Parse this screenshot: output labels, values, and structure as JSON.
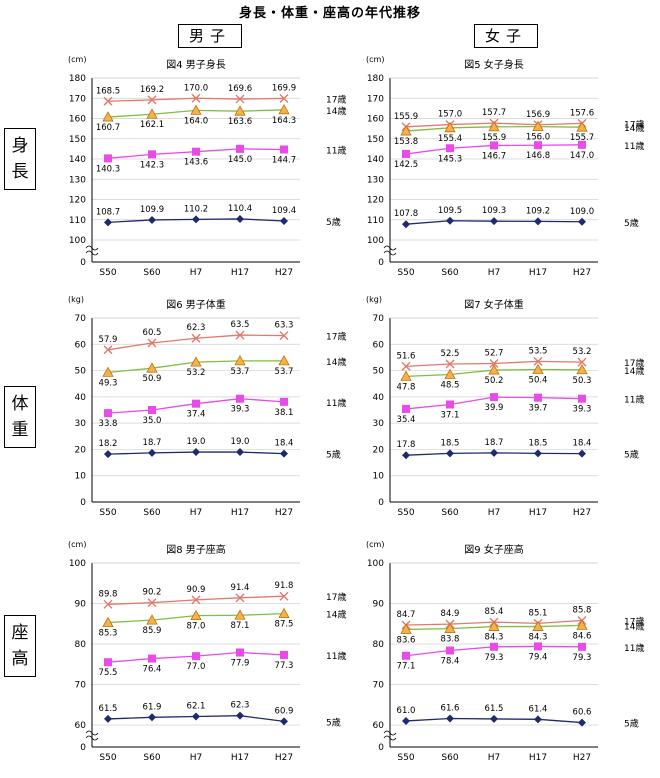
{
  "title": "身長・体重・座高の年代推移",
  "gender": {
    "male": "男子",
    "female": "女子"
  },
  "rows": [
    {
      "label": "身長"
    },
    {
      "label": "体重"
    },
    {
      "label": "座高"
    }
  ],
  "colors": {
    "age17": "#E2796C",
    "age14": "#7FBF3F",
    "age11": "#E94BE9",
    "age5": "#1F2A6E",
    "triangle_fill": "#F6B24A"
  },
  "chart_data": [
    {
      "type": "line",
      "title": "図4 男子身長",
      "unit_label": "(cm)",
      "categories": [
        "S50",
        "S60",
        "H7",
        "H17",
        "H27"
      ],
      "ylim": [
        0,
        180
      ],
      "yticks": [
        0,
        100,
        110,
        120,
        130,
        140,
        150,
        160,
        170,
        180
      ],
      "axis_break": true,
      "grid": true,
      "series": [
        {
          "name": "17歳",
          "values": [
            168.5,
            169.2,
            170.0,
            169.6,
            169.9
          ],
          "labels": [
            "168.5",
            "169.2",
            "170.0",
            "169.6",
            "169.9"
          ]
        },
        {
          "name": "14歳",
          "values": [
            160.7,
            162.1,
            164.0,
            163.6,
            164.3
          ],
          "labels": [
            "160.7",
            "162.1",
            "164.0",
            "163.6",
            "164.3"
          ]
        },
        {
          "name": "11歳",
          "values": [
            140.3,
            142.3,
            143.6,
            145.0,
            144.7
          ],
          "labels": [
            "140.3",
            "142.3",
            "143.6",
            "145.0",
            "144.7"
          ]
        },
        {
          "name": "5歳",
          "values": [
            108.7,
            109.9,
            110.2,
            110.4,
            109.4
          ],
          "labels": [
            "108.7",
            "109.9",
            "110.2",
            "110.4",
            "109.4"
          ]
        }
      ]
    },
    {
      "type": "line",
      "title": "図5 女子身長",
      "unit_label": "(cm)",
      "categories": [
        "S50",
        "S60",
        "H7",
        "H17",
        "H27"
      ],
      "ylim": [
        0,
        180
      ],
      "yticks": [
        0,
        100,
        110,
        120,
        130,
        140,
        150,
        160,
        170,
        180
      ],
      "axis_break": true,
      "grid": true,
      "series": [
        {
          "name": "17歳",
          "values": [
            155.9,
            157.0,
            157.7,
            156.9,
            157.6
          ],
          "labels": [
            "155.9",
            "157.0",
            "157.7",
            "156.9",
            "157.6"
          ]
        },
        {
          "name": "14歳",
          "values": [
            153.8,
            155.4,
            155.9,
            156.0,
            155.7
          ],
          "labels": [
            "153.8",
            "155.4",
            "155.9",
            "156.0",
            "155.7"
          ]
        },
        {
          "name": "11歳",
          "values": [
            142.5,
            145.3,
            146.7,
            146.8,
            147.0
          ],
          "labels": [
            "142.5",
            "145.3",
            "146.7",
            "146.8",
            "147.0"
          ]
        },
        {
          "name": "5歳",
          "values": [
            107.8,
            109.5,
            109.3,
            109.2,
            109.0
          ],
          "labels": [
            "107.8",
            "109.5",
            "109.3",
            "109.2",
            "109.0"
          ]
        }
      ]
    },
    {
      "type": "line",
      "title": "図6 男子体重",
      "unit_label": "(kg)",
      "categories": [
        "S50",
        "S60",
        "H7",
        "H17",
        "H27"
      ],
      "ylim": [
        0,
        70
      ],
      "yticks": [
        0,
        10,
        20,
        30,
        40,
        50,
        60,
        70
      ],
      "axis_break": false,
      "grid": true,
      "series": [
        {
          "name": "17歳",
          "values": [
            57.9,
            60.5,
            62.3,
            63.5,
            63.3
          ],
          "labels": [
            "57.9",
            "60.5",
            "62.3",
            "63.5",
            "63.3"
          ]
        },
        {
          "name": "14歳",
          "values": [
            49.3,
            50.9,
            53.2,
            53.7,
            53.7
          ],
          "labels": [
            "49.3",
            "50.9",
            "53.2",
            "53.7",
            "53.7"
          ]
        },
        {
          "name": "11歳",
          "values": [
            33.8,
            35.0,
            37.4,
            39.3,
            38.1
          ],
          "labels": [
            "33.8",
            "35.0",
            "37.4",
            "39.3",
            "38.1"
          ]
        },
        {
          "name": "5歳",
          "values": [
            18.2,
            18.7,
            19.0,
            19.0,
            18.4
          ],
          "labels": [
            "18.2",
            "18.7",
            "19.0",
            "19.0",
            "18.4"
          ]
        }
      ]
    },
    {
      "type": "line",
      "title": "図7 女子体重",
      "unit_label": "(kg)",
      "categories": [
        "S50",
        "S60",
        "H7",
        "H17",
        "H27"
      ],
      "ylim": [
        0,
        70
      ],
      "yticks": [
        0,
        10,
        20,
        30,
        40,
        50,
        60,
        70
      ],
      "axis_break": false,
      "grid": true,
      "series": [
        {
          "name": "17歳",
          "values": [
            51.6,
            52.5,
            52.7,
            53.5,
            53.2
          ],
          "labels": [
            "51.6",
            "52.5",
            "52.7",
            "53.5",
            "53.2"
          ]
        },
        {
          "name": "14歳",
          "values": [
            47.8,
            48.5,
            50.2,
            50.4,
            50.3
          ],
          "labels": [
            "47.8",
            "48.5",
            "50.2",
            "50.4",
            "50.3"
          ]
        },
        {
          "name": "11歳",
          "values": [
            35.4,
            37.1,
            39.9,
            39.7,
            39.3
          ],
          "labels": [
            "35.4",
            "37.1",
            "39.9",
            "39.7",
            "39.3"
          ]
        },
        {
          "name": "5歳",
          "values": [
            17.8,
            18.5,
            18.7,
            18.5,
            18.4
          ],
          "labels": [
            "17.8",
            "18.5",
            "18.7",
            "18.5",
            "18.4"
          ]
        }
      ]
    },
    {
      "type": "line",
      "title": "図8 男子座高",
      "unit_label": "(cm)",
      "categories": [
        "S50",
        "S60",
        "H7",
        "H17",
        "H27"
      ],
      "ylim": [
        0,
        100
      ],
      "yticks": [
        0,
        60,
        70,
        80,
        90,
        100
      ],
      "axis_break": true,
      "grid": true,
      "series": [
        {
          "name": "17歳",
          "values": [
            89.8,
            90.2,
            90.9,
            91.4,
            91.8
          ],
          "labels": [
            "89.8",
            "90.2",
            "90.9",
            "91.4",
            "91.8"
          ]
        },
        {
          "name": "14歳",
          "values": [
            85.3,
            85.9,
            87.0,
            87.1,
            87.5
          ],
          "labels": [
            "85.3",
            "85.9",
            "87.0",
            "87.1",
            "87.5"
          ]
        },
        {
          "name": "11歳",
          "values": [
            75.5,
            76.4,
            77.0,
            77.9,
            77.3
          ],
          "labels": [
            "75.5",
            "76.4",
            "77.0",
            "77.9",
            "77.3"
          ]
        },
        {
          "name": "5歳",
          "values": [
            61.5,
            61.9,
            62.1,
            62.3,
            60.9
          ],
          "labels": [
            "61.5",
            "61.9",
            "62.1",
            "62.3",
            "60.9"
          ]
        }
      ]
    },
    {
      "type": "line",
      "title": "図9 女子座高",
      "unit_label": "(cm)",
      "categories": [
        "S50",
        "S60",
        "H7",
        "H17",
        "H27"
      ],
      "ylim": [
        0,
        100
      ],
      "yticks": [
        0,
        60,
        70,
        80,
        90,
        100
      ],
      "axis_break": true,
      "grid": true,
      "series": [
        {
          "name": "17歳",
          "values": [
            84.7,
            84.9,
            85.4,
            85.1,
            85.8
          ],
          "labels": [
            "84.7",
            "84.9",
            "85.4",
            "85.1",
            "85.8"
          ]
        },
        {
          "name": "14歳",
          "values": [
            83.6,
            83.8,
            84.3,
            84.3,
            84.6
          ],
          "labels": [
            "83.6",
            "83.8",
            "84.3",
            "84.3",
            "84.6"
          ]
        },
        {
          "name": "11歳",
          "values": [
            77.1,
            78.4,
            79.3,
            79.4,
            79.3
          ],
          "labels": [
            "77.1",
            "78.4",
            "79.3",
            "79.4",
            "79.3"
          ]
        },
        {
          "name": "5歳",
          "values": [
            61.0,
            61.6,
            61.5,
            61.4,
            60.6
          ],
          "labels": [
            "61.0",
            "61.6",
            "61.5",
            "61.4",
            "60.6"
          ]
        }
      ]
    }
  ]
}
